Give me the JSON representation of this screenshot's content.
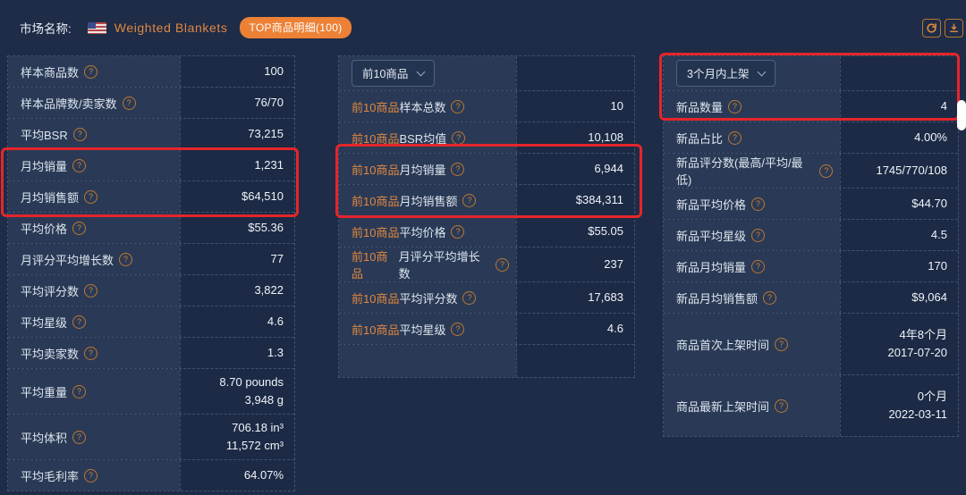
{
  "header": {
    "market_label": "市场名称:",
    "market_name": "Weighted Blankets",
    "badge": "TOP商品明细(100)"
  },
  "colors": {
    "accent_orange": "#e0873f",
    "badge_orange": "#ed8136",
    "annotation_red": "#e6252a",
    "page_bg": "#1e2c48",
    "label_cell_bg": "#2a3a56"
  },
  "tables": [
    {
      "rows": [
        {
          "label": "样本商品数",
          "value": "100",
          "help": true
        },
        {
          "label": "样本品牌数/卖家数",
          "value": "76/70",
          "help": true
        },
        {
          "label": "平均BSR",
          "value": "73,215",
          "help": true
        },
        {
          "label": "月均销量",
          "value": "1,231",
          "help": true
        },
        {
          "label": "月均销售额",
          "value": "$64,510",
          "help": true
        },
        {
          "label": "平均价格",
          "value": "$55.36",
          "help": true
        },
        {
          "label": "月评分平均增长数",
          "value": "77",
          "help": true
        },
        {
          "label": "平均评分数",
          "value": "3,822",
          "help": true
        },
        {
          "label": "平均星级",
          "value": "4.6",
          "help": true
        },
        {
          "label": "平均卖家数",
          "value": "1.3",
          "help": true
        },
        {
          "label": "平均重量",
          "value": [
            "8.70 pounds",
            "3,948 g"
          ],
          "help": true
        },
        {
          "label": "平均体积",
          "value": [
            "706.18 in³",
            "11,572 cm³"
          ],
          "help": true
        },
        {
          "label": "平均毛利率",
          "value": "64.07%",
          "help": true
        }
      ]
    },
    {
      "dropdown": "前10商品",
      "rows": [
        {
          "prefix": "前10商品",
          "label": "样本总数",
          "value": "10",
          "help": true
        },
        {
          "prefix": "前10商品",
          "label": "BSR均值",
          "value": "10,108",
          "help": true
        },
        {
          "prefix": "前10商品",
          "label": "月均销量",
          "value": "6,944",
          "help": true
        },
        {
          "prefix": "前10商品",
          "label": "月均销售额",
          "value": "$384,311",
          "help": true
        },
        {
          "prefix": "前10商品",
          "label": "平均价格",
          "value": "$55.05",
          "help": true
        },
        {
          "prefix": "前10商品",
          "label": "月评分平均增长数",
          "value": "237",
          "help": true
        },
        {
          "prefix": "前10商品",
          "label": "平均评分数",
          "value": "17,683",
          "help": true
        },
        {
          "prefix": "前10商品",
          "label": "平均星级",
          "value": "4.6",
          "help": true
        },
        {
          "empty": true
        }
      ]
    },
    {
      "dropdown": "3个月内上架",
      "rows": [
        {
          "label": "新品数量",
          "value": "4",
          "help": true
        },
        {
          "label": "新品占比",
          "value": "4.00%",
          "help": true
        },
        {
          "label": "新品评分数(最高/平均/最低)",
          "value": "1745/770/108",
          "help": true
        },
        {
          "label": "新品平均价格",
          "value": "$44.70",
          "help": true
        },
        {
          "label": "新品平均星级",
          "value": "4.5",
          "help": true
        },
        {
          "label": "新品月均销量",
          "value": "170",
          "help": true
        },
        {
          "label": "新品月均销售额",
          "value": "$9,064",
          "help": true
        },
        {
          "label": "商品首次上架时间",
          "value": [
            "4年8个月",
            "2017-07-20"
          ],
          "help": true
        },
        {
          "label": "商品最新上架时间",
          "value": [
            "0个月",
            "2022-03-11"
          ],
          "help": true
        }
      ]
    }
  ]
}
